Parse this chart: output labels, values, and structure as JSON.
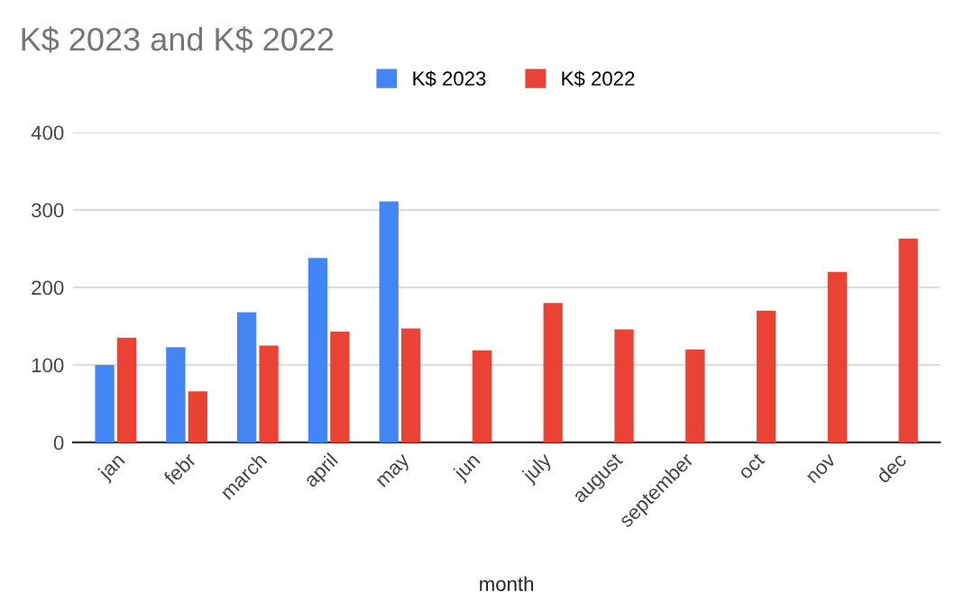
{
  "chart_data": {
    "type": "bar",
    "title": "K$ 2023 and K$ 2022",
    "xlabel": "month",
    "categories": [
      "jan",
      "febr",
      "march",
      "april",
      "may",
      "jun",
      "july",
      "august",
      "september",
      "oct",
      "nov",
      "dec"
    ],
    "series": [
      {
        "name": "K$ 2023",
        "color": "#4285f4",
        "values": [
          100,
          123,
          168,
          238,
          311,
          null,
          null,
          null,
          null,
          null,
          null,
          null
        ]
      },
      {
        "name": "K$ 2022",
        "color": "#ea4335",
        "values": [
          135,
          66,
          125,
          143,
          147,
          119,
          180,
          146,
          120,
          170,
          220,
          263
        ]
      }
    ],
    "ylim": [
      0,
      400
    ],
    "yticks": [
      0,
      100,
      200,
      300,
      400
    ],
    "grid": "y",
    "legend": "top"
  }
}
